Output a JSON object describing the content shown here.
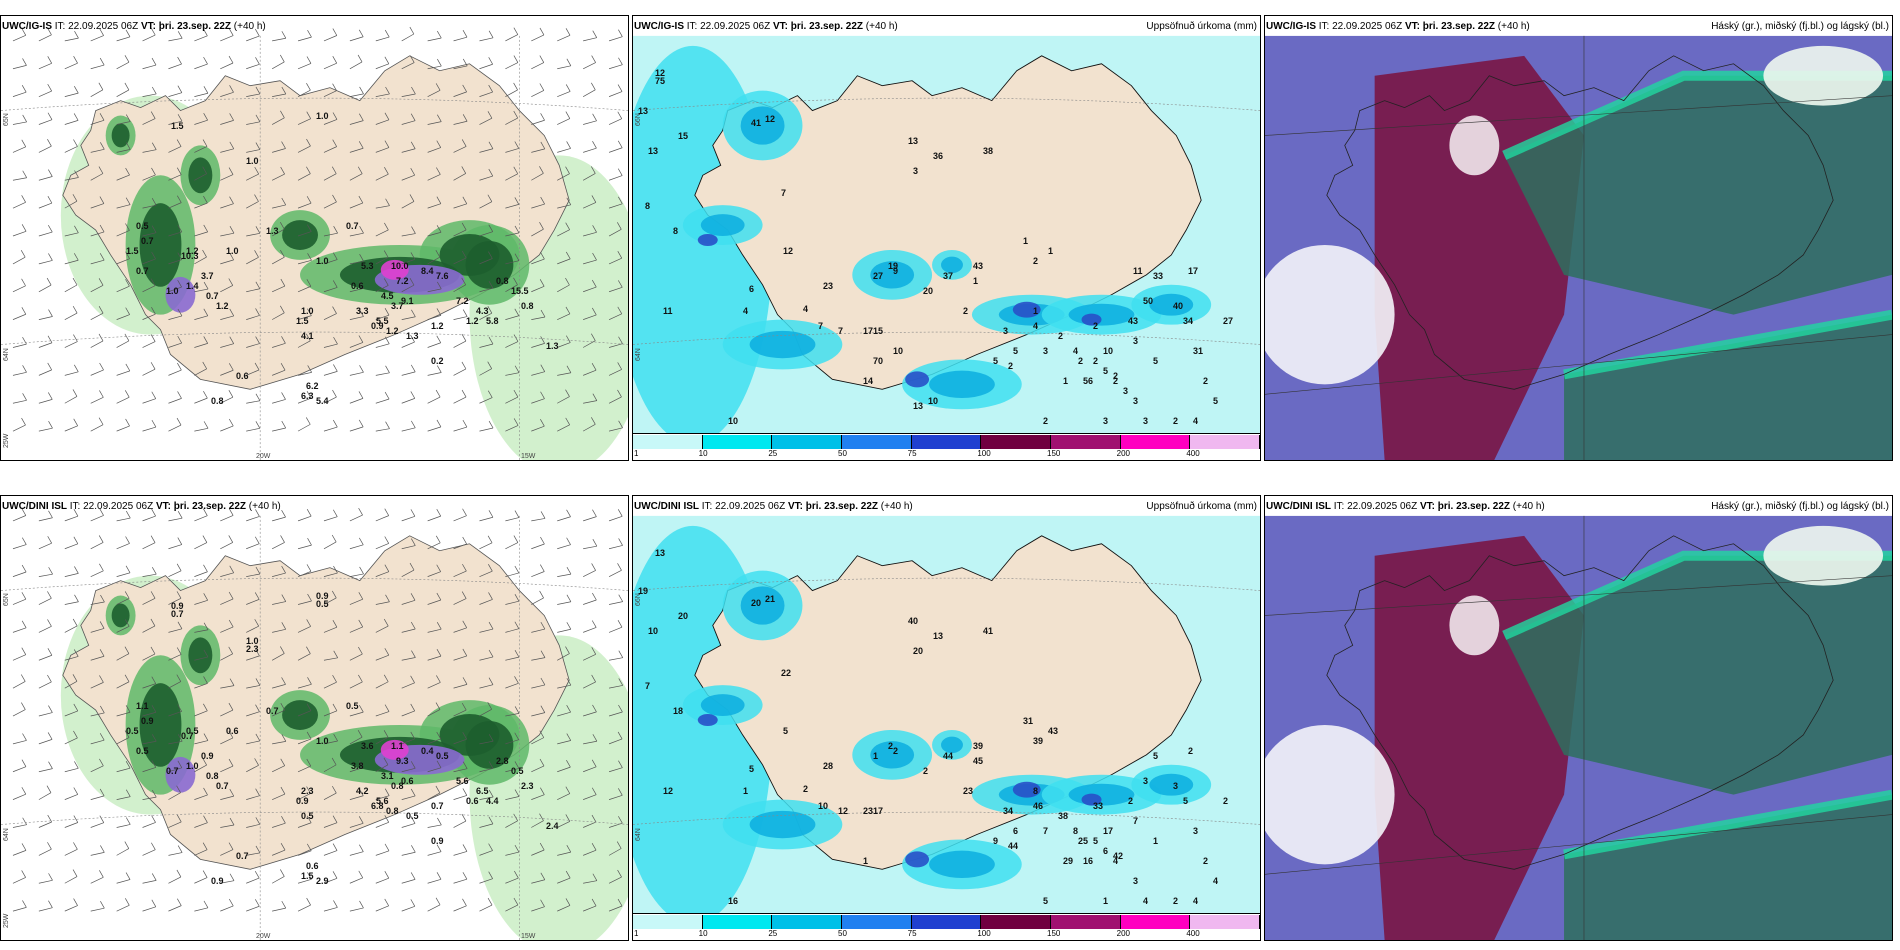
{
  "panels": [
    {
      "model": "UWC/IG-IS",
      "it_label": "IT:",
      "it": "22.09.2025 06Z",
      "vt_label": "VT:",
      "vt": "þri. 23.sep. 22Z",
      "lead": "(+40 h)",
      "title": "",
      "kind": "wind",
      "axis": {
        "top": "65N",
        "mid": "64N",
        "bot": "25W",
        "x1": "20W",
        "x2": "15W"
      },
      "values": [
        "1.5",
        "1.0",
        "1.0",
        "1.3",
        "0.7",
        "1.0",
        "1.2",
        "0.5",
        "0.7",
        "0.7",
        "1.5",
        "1.0",
        "1.4",
        "1.2",
        "1.0",
        "10.3",
        "3.7",
        "0.7",
        "0.6",
        "0.8",
        "1.0",
        "1.5",
        "4.1",
        "6.3",
        "6.2",
        "5.4",
        "3.3",
        "5.5",
        "0.9",
        "1.2",
        "1.3",
        "1.2",
        "1.2",
        "0.8",
        "1.3",
        "0.6",
        "5.3",
        "4.5",
        "10.0",
        "7.2",
        "9.1",
        "8.4",
        "7.6",
        "7.2",
        "4.3",
        "5.8",
        "0.8",
        "15.5",
        "0.2",
        "3.7"
      ]
    },
    {
      "model": "UWC/IG-IS",
      "it_label": "IT:",
      "it": "22.09.2025 06Z",
      "vt_label": "VT:",
      "vt": "þri. 23.sep. 22Z",
      "lead": "(+40 h)",
      "title": "Uppsöfnuð úrkoma (mm)",
      "kind": "precip",
      "axis": {
        "top": "66N",
        "mid": "64N",
        "bot": "",
        "x1": "",
        "x2": ""
      },
      "values": [
        "12",
        "13",
        "11",
        "10",
        "8",
        "13",
        "15",
        "41",
        "12",
        "7",
        "8",
        "6",
        "4",
        "4",
        "12",
        "7",
        "7",
        "17",
        "23",
        "15",
        "14",
        "19",
        "20",
        "27",
        "9",
        "37",
        "43",
        "38",
        "13",
        "36",
        "3",
        "2",
        "1",
        "1",
        "2",
        "1",
        "1",
        "3",
        "2",
        "2",
        "1",
        "4",
        "2",
        "2",
        "2",
        "56",
        "10",
        "3",
        "5",
        "43",
        "40",
        "17",
        "50",
        "33",
        "34",
        "31",
        "27",
        "2",
        "5",
        "3",
        "3",
        "4",
        "2",
        "3",
        "2",
        "5",
        "5",
        "3",
        "4",
        "2",
        "5",
        "2",
        "3",
        "11",
        "13",
        "10",
        "10",
        "70",
        "75"
      ]
    },
    {
      "model": "UWC/IG-IS",
      "it_label": "IT:",
      "it": "22.09.2025 06Z",
      "vt_label": "VT:",
      "vt": "þri. 23.sep. 22Z",
      "lead": "(+40 h)",
      "title": "Háský (gr.), miðský (fj.bl.) og lágský (bl.)",
      "kind": "cloud",
      "axis": {
        "top": "",
        "mid": "",
        "bot": "",
        "x1": "",
        "x2": ""
      },
      "values": []
    },
    {
      "model": "UWC/DINI ISL",
      "it_label": "IT:",
      "it": "22.09.2025 06Z",
      "vt_label": "VT:",
      "vt": "þri. 23.sep. 22Z",
      "lead": "(+40 h)",
      "title": "",
      "kind": "wind",
      "axis": {
        "top": "65N",
        "mid": "64N",
        "bot": "25W",
        "x1": "20W",
        "x2": "15W"
      },
      "values": [
        "0.9",
        "0.9",
        "1.0",
        "0.7",
        "0.5",
        "0.6",
        "0.5",
        "1.1",
        "0.9",
        "0.5",
        "0.5",
        "0.7",
        "1.0",
        "0.7",
        "1.0",
        "0.7",
        "0.9",
        "0.8",
        "0.7",
        "0.9",
        "2.3",
        "0.9",
        "0.5",
        "1.5",
        "0.6",
        "2.9",
        "4.2",
        "5.6",
        "6.8",
        "0.8",
        "0.5",
        "0.7",
        "0.6",
        "2.3",
        "2.4",
        "3.8",
        "3.6",
        "3.1",
        "1.1",
        "9.3",
        "0.6",
        "0.4",
        "0.5",
        "5.6",
        "6.5",
        "4.4",
        "2.8",
        "0.5",
        "0.9",
        "0.8",
        "0.7",
        "0.5",
        "2.3"
      ]
    },
    {
      "model": "UWC/DINI ISL",
      "it_label": "IT:",
      "it": "22.09.2025 06Z",
      "vt_label": "VT:",
      "vt": "þri. 23.sep. 22Z",
      "lead": "(+40 h)",
      "title": "Uppsöfnuð úrkoma (mm)",
      "kind": "precip",
      "axis": {
        "top": "66N",
        "mid": "64N",
        "bot": "",
        "x1": "",
        "x2": ""
      },
      "values": [
        "13",
        "10",
        "12",
        "16",
        "18",
        "19",
        "20",
        "20",
        "21",
        "22",
        "7",
        "5",
        "1",
        "2",
        "5",
        "10",
        "12",
        "23",
        "28",
        "17",
        "1",
        "2",
        "2",
        "1",
        "2",
        "44",
        "39",
        "41",
        "40",
        "13",
        "20",
        "23",
        "45",
        "43",
        "38",
        "8",
        "31",
        "34",
        "39",
        "44",
        "29",
        "46",
        "42",
        "33",
        "25",
        "16",
        "17",
        "7",
        "1",
        "2",
        "3",
        "2",
        "3",
        "5",
        "5",
        "3",
        "2",
        "2",
        "4",
        "3",
        "4",
        "4",
        "2",
        "1",
        "5",
        "6",
        "9",
        "7",
        "8",
        "5",
        "6",
        "4"
      ]
    },
    {
      "model": "UWC/DINI ISL",
      "it_label": "IT:",
      "it": "22.09.2025 06Z",
      "vt_label": "VT:",
      "vt": "þri. 23.sep. 22Z",
      "lead": "(+40 h)",
      "title": "Háský (gr.), miðský (fj.bl.) og lágský (bl.)",
      "kind": "cloud",
      "axis": {
        "top": "",
        "mid": "",
        "bot": "",
        "x1": "",
        "x2": ""
      },
      "values": []
    }
  ],
  "colorbar": {
    "ticks": [
      "1",
      "10",
      "25",
      "50",
      "75",
      "100",
      "150",
      "200",
      "400"
    ],
    "colors": [
      "#c8f8f8",
      "#00e8f0",
      "#00c0e8",
      "#2080f0",
      "#2040d0",
      "#700040",
      "#a01070",
      "#ff00c0",
      "#f0b8f0"
    ]
  },
  "colors": {
    "land": "#f2e2cf",
    "wind_light": "#cdeec8",
    "wind_mid": "#5fb868",
    "wind_dark": "#1d5e2e",
    "wind_peak": "#8a6ad0",
    "wind_max": "#e040d0",
    "precip_sea": "#b8f4f4",
    "precip_light": "#40dff0",
    "precip_mid": "#10b0e0",
    "precip_high": "#2850c8",
    "cloud_high": "#7a1848",
    "cloud_mid": "#5050b8",
    "cloud_low": "#2e6e5e",
    "cloud_edge": "#20d8a0"
  }
}
